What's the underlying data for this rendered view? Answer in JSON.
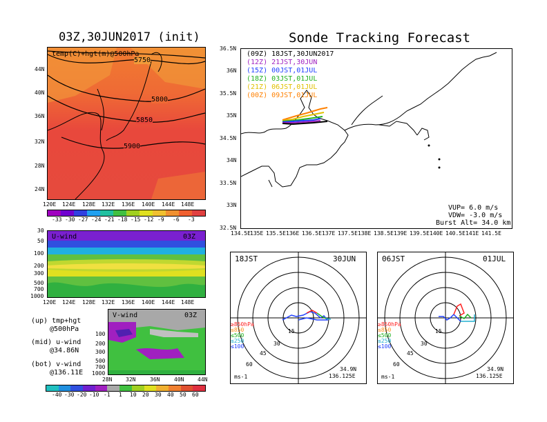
{
  "left": {
    "title": "03Z,30JUN2017 (init)",
    "map": {
      "label": "temp(C)+hgt(m)@500hPa",
      "yticks": [
        "44N",
        "40N",
        "36N",
        "32N",
        "28N",
        "24N"
      ],
      "xticks": [
        "120E",
        "124E",
        "128E",
        "132E",
        "136E",
        "140E",
        "144E",
        "148E"
      ],
      "contours": [
        "5750",
        "5800",
        "5850",
        "5900"
      ],
      "colorbar": [
        "-33",
        "-30",
        "-27",
        "-24",
        "-21",
        "-18",
        "-15",
        "-12",
        "-9",
        "-6",
        "-3"
      ]
    },
    "uwind": {
      "label": "U-wind",
      "time": "03Z",
      "yticks": [
        "30",
        "50",
        "100",
        "200",
        "300",
        "500",
        "700",
        "1000"
      ],
      "xticks": [
        "120E",
        "124E",
        "128E",
        "132E",
        "136E",
        "140E",
        "144E",
        "148E"
      ]
    },
    "vwind": {
      "label": "V-wind",
      "time": "03Z",
      "yticks": [
        "100",
        "200",
        "300",
        "500",
        "700",
        "1000"
      ],
      "xticks": [
        "28N",
        "32N",
        "36N",
        "40N",
        "44N"
      ]
    },
    "legend": [
      "(up) tmp+hgt",
      "@500hPa",
      "(mid) u-wind",
      "@34.86N",
      "(bot) v-wind",
      "@136.11E"
    ],
    "windbar": [
      "-40",
      "-30",
      "-20",
      "-10",
      "-1",
      "1",
      "10",
      "20",
      "30",
      "40",
      "50",
      "60"
    ]
  },
  "right": {
    "title": "Sonde Tracking Forecast",
    "runs": [
      {
        "text": "(09Z)  18JST,30JUN2017",
        "color": "#000000"
      },
      {
        "text": "(12Z)  21JST,30JUN",
        "color": "#a020c0"
      },
      {
        "text": "(15Z)  00JST,01JUL",
        "color": "#2040ff"
      },
      {
        "text": "(18Z)  03JST,01JUL",
        "color": "#20b020"
      },
      {
        "text": "(21Z)  06JST,01JUL",
        "color": "#e0c000"
      },
      {
        "text": "(00Z)  09JST,01JUL",
        "color": "#ff8000"
      }
    ],
    "yticks": [
      "36.5N",
      "36N",
      "35.5N",
      "35N",
      "34.5N",
      "34N",
      "33.5N",
      "33N",
      "32.5N"
    ],
    "xticks": [
      "134.5E",
      "135E",
      "135.5E",
      "136E",
      "136.5E",
      "137E",
      "137.5E",
      "138E",
      "138.5E",
      "139E",
      "139.5E",
      "140E",
      "140.5E",
      "141E",
      "141.5E"
    ],
    "params": [
      "VUP=  6.0 m/s",
      "VDW= -3.0 m/s",
      "Burst Alt= 34.0 km"
    ],
    "polar1": {
      "time": "18JST",
      "date": "30JUN",
      "lat": "34.9N",
      "lon": "136.125E"
    },
    "polar2": {
      "time": "06JST",
      "date": "01JUL",
      "lat": "34.9N",
      "lon": "136.125E"
    },
    "rings": [
      "15",
      "30",
      "45",
      "60"
    ],
    "unit": "ms-1",
    "levels": [
      {
        "text": "≥850hPa",
        "color": "#ff2020"
      },
      {
        "text": "≤850",
        "color": "#ff9020"
      },
      {
        "text": "≤500",
        "color": "#20b020"
      },
      {
        "text": "≤250",
        "color": "#20b0d0"
      },
      {
        "text": "≤100",
        "color": "#2040ff"
      }
    ]
  }
}
